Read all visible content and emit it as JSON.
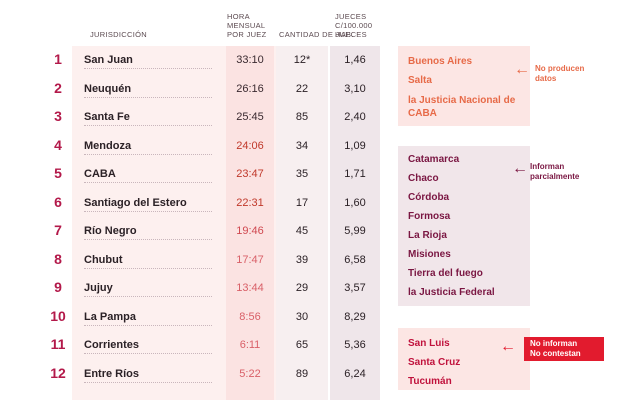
{
  "headers": {
    "jurisdiccion": "JURISDICCIÓN",
    "hora": [
      "HORA",
      "MENSUAL",
      "POR JUEZ"
    ],
    "cantidad": "CANTIDAD DE JUECES",
    "jueces": [
      "JUECES",
      "c/100.000",
      "HAB."
    ]
  },
  "rows": [
    {
      "rank": "1",
      "name": "San Juan",
      "hora": "33:10",
      "cant": "12*",
      "jue": "1,46"
    },
    {
      "rank": "2",
      "name": "Neuquén",
      "hora": "26:16",
      "cant": "22",
      "jue": "3,10"
    },
    {
      "rank": "3",
      "name": "Santa Fe",
      "hora": "25:45",
      "cant": "85",
      "jue": "2,40"
    },
    {
      "rank": "4",
      "name": "Mendoza",
      "hora": "24:06",
      "cant": "34",
      "jue": "1,09"
    },
    {
      "rank": "5",
      "name": "CABA",
      "hora": "23:47",
      "cant": "35",
      "jue": "1,71"
    },
    {
      "rank": "6",
      "name": "Santiago del Estero",
      "hora": "22:31",
      "cant": "17",
      "jue": "1,60"
    },
    {
      "rank": "7",
      "name": "Río Negro",
      "hora": "19:46",
      "cant": "45",
      "jue": "5,99"
    },
    {
      "rank": "8",
      "name": "Chubut",
      "hora": "17:47",
      "cant": "39",
      "jue": "6,58"
    },
    {
      "rank": "9",
      "name": "Jujuy",
      "hora": "13:44",
      "cant": "29",
      "jue": "3,57"
    },
    {
      "rank": "10",
      "name": "La Pampa",
      "hora": "8:56",
      "cant": "30",
      "jue": "8,29"
    },
    {
      "rank": "11",
      "name": "Corrientes",
      "hora": "6:11",
      "cant": "65",
      "jue": "5,36"
    },
    {
      "rank": "12",
      "name": "Entre Ríos",
      "hora": "5:22",
      "cant": "89",
      "jue": "6,24"
    }
  ],
  "hora_colors": [
    "#3a2a30",
    "#3a2a30",
    "#3a2a30",
    "#c0392b",
    "#c0392b",
    "#c0392b",
    "#d04850",
    "#d96068",
    "#d96068",
    "#d96068",
    "#d96068",
    "#d96068"
  ],
  "panels": {
    "no_producen": {
      "items": [
        "Buenos Aires",
        "Salta",
        "la Justicia Nacional de",
        "CABA"
      ],
      "note": [
        "No producen",
        "datos"
      ]
    },
    "parcial": {
      "items": [
        "Catamarca",
        "Chaco",
        "Córdoba",
        "Formosa",
        "La Rioja",
        "Misiones",
        "Tierra del fuego",
        "la Justicia Federal"
      ],
      "note": [
        "Informan",
        "parcialmente"
      ]
    },
    "no_informan": {
      "items": [
        "San Luis",
        "Santa Cruz",
        "Tucumán"
      ],
      "note": [
        "No informan",
        "No contestan"
      ]
    }
  },
  "icons": {
    "arrow": "arrow-left-icon"
  },
  "colors": {
    "rank": "#b3194a",
    "orange": "#e76a48",
    "plum": "#7a1642",
    "red": "#e21b2e"
  }
}
